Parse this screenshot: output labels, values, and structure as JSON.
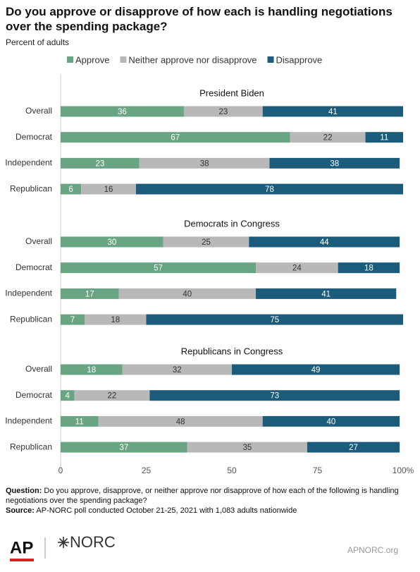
{
  "chart_data": {
    "type": "bar",
    "orientation": "horizontal",
    "stacked": true,
    "title": "Do you approve or disapprove of how each is handling negotiations over the spending package?",
    "subtitle": "Percent of adults",
    "legend": "top",
    "series": [
      {
        "name": "Approve",
        "color": "#6aa583",
        "label_color": "#ffffff"
      },
      {
        "name": "Neither approve nor disapprove",
        "color": "#b8b8b8",
        "label_color": "#333333"
      },
      {
        "name": "Disapprove",
        "color": "#1b5b7c",
        "label_color": "#ffffff"
      }
    ],
    "panels": [
      {
        "title": "President Biden",
        "categories": [
          "Overall",
          "Democrat",
          "Independent",
          "Republican"
        ],
        "series": [
          {
            "values": [
              36,
              67,
              23,
              6
            ]
          },
          {
            "values": [
              23,
              22,
              38,
              16
            ]
          },
          {
            "values": [
              41,
              11,
              38,
              78
            ]
          }
        ]
      },
      {
        "title": "Democrats in Congress",
        "categories": [
          "Overall",
          "Democrat",
          "Independent",
          "Republican"
        ],
        "series": [
          {
            "values": [
              30,
              57,
              17,
              7
            ]
          },
          {
            "values": [
              25,
              24,
              40,
              18
            ]
          },
          {
            "values": [
              44,
              18,
              41,
              75
            ]
          }
        ]
      },
      {
        "title": "Republicans in Congress",
        "categories": [
          "Overall",
          "Democrat",
          "Independent",
          "Republican"
        ],
        "series": [
          {
            "values": [
              18,
              4,
              11,
              37
            ]
          },
          {
            "values": [
              32,
              22,
              48,
              35
            ]
          },
          {
            "values": [
              49,
              73,
              40,
              27
            ]
          }
        ]
      }
    ],
    "xlim": [
      0,
      100
    ],
    "xticks": [
      0,
      25,
      50,
      75,
      {
        "value": 100,
        "label": "100%"
      }
    ],
    "grid": false
  },
  "notes": {
    "question_label": "Question:",
    "question": "Do you approve, disapprove, or neither approve nor disapprove of how each of the following is handling negotiations over the spending package?",
    "source_label": "Source:",
    "source": "AP-NORC poll conducted October 21-25, 2021 with 1,083 adults nationwide"
  },
  "footer": {
    "logo_ap": "AP",
    "logo_norc": "NORC",
    "site": "APNORC.org"
  }
}
